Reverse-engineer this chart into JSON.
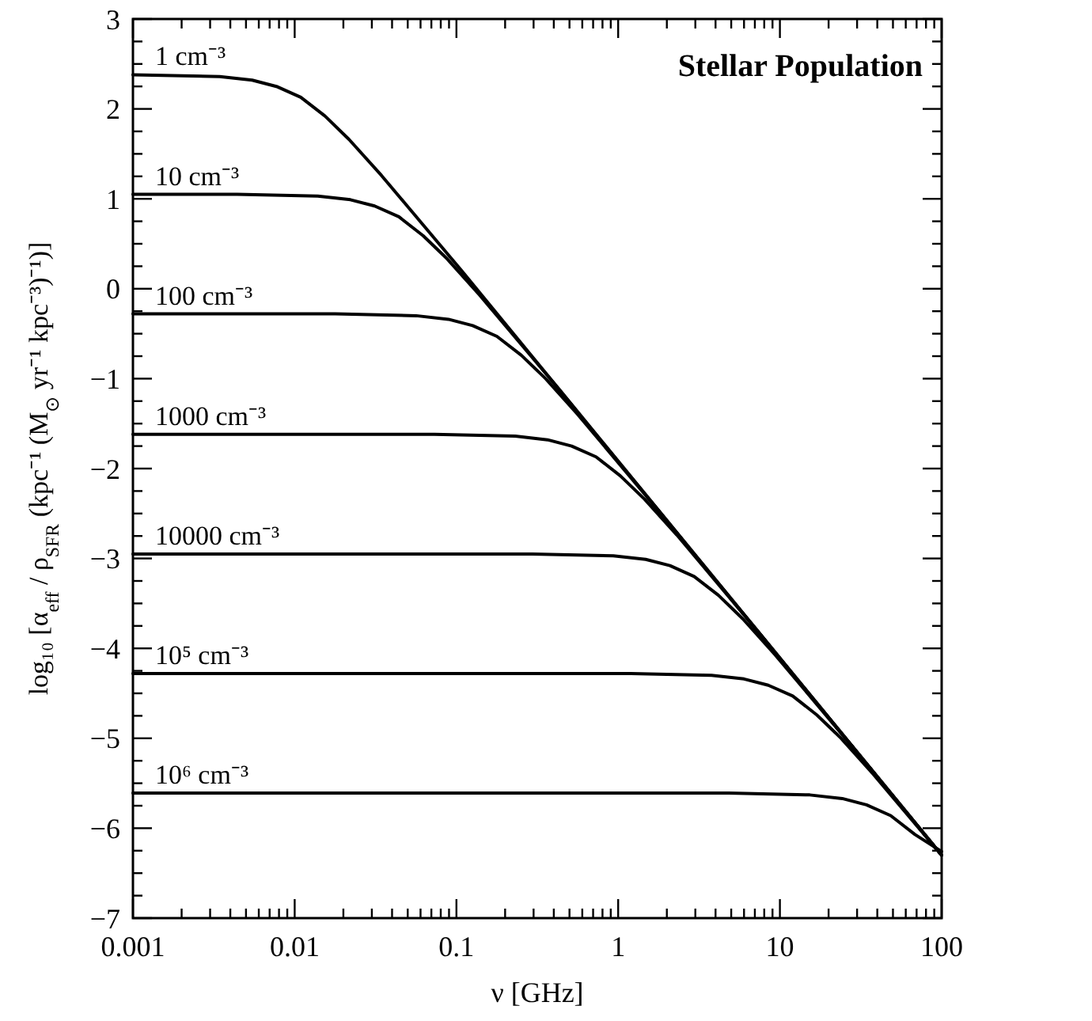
{
  "chart_data": {
    "type": "line",
    "title": "Stellar Population",
    "xlabel": "ν [GHz]",
    "ylabel": "log₁₀ [α$_{eff}$ / ρ$_{SFR}$ (kpc⁻¹ (M$_{⊙}$ yr⁻¹ kpc⁻³)⁻¹)]",
    "log": "x",
    "grid": false,
    "marker": "none",
    "line_style": "solid",
    "xlim": [
      0.001,
      100
    ],
    "ylim": [
      -7,
      3
    ],
    "xticks": [
      0.001,
      {
        "value": 0.002,
        "label": null
      },
      {
        "value": 0.003,
        "label": null
      },
      {
        "value": 0.004,
        "label": null
      },
      {
        "value": 0.005,
        "label": null
      },
      {
        "value": 0.006,
        "label": null
      },
      {
        "value": 0.007,
        "label": null
      },
      {
        "value": 0.008,
        "label": null
      },
      {
        "value": 0.009,
        "label": null
      },
      0.01,
      {
        "value": 0.02,
        "label": null
      },
      {
        "value": 0.03,
        "label": null
      },
      {
        "value": 0.04,
        "label": null
      },
      {
        "value": 0.05,
        "label": null
      },
      {
        "value": 0.06,
        "label": null
      },
      {
        "value": 0.07,
        "label": null
      },
      {
        "value": 0.08,
        "label": null
      },
      {
        "value": 0.09,
        "label": null
      },
      0.1,
      {
        "value": 0.2,
        "label": null
      },
      {
        "value": 0.3,
        "label": null
      },
      {
        "value": 0.4,
        "label": null
      },
      {
        "value": 0.5,
        "label": null
      },
      {
        "value": 0.6,
        "label": null
      },
      {
        "value": 0.7,
        "label": null
      },
      {
        "value": 0.8,
        "label": null
      },
      {
        "value": 0.9,
        "label": null
      },
      1,
      {
        "value": 2,
        "label": null
      },
      {
        "value": 3,
        "label": null
      },
      {
        "value": 4,
        "label": null
      },
      {
        "value": 5,
        "label": null
      },
      {
        "value": 6,
        "label": null
      },
      {
        "value": 7,
        "label": null
      },
      {
        "value": 8,
        "label": null
      },
      {
        "value": 9,
        "label": null
      },
      10,
      {
        "value": 20,
        "label": null
      },
      {
        "value": 30,
        "label": null
      },
      {
        "value": 40,
        "label": null
      },
      {
        "value": 50,
        "label": null
      },
      {
        "value": 60,
        "label": null
      },
      {
        "value": 70,
        "label": null
      },
      {
        "value": 80,
        "label": null
      },
      {
        "value": 90,
        "label": null
      },
      100
    ],
    "yticks": [
      {
        "value": -7,
        "label": "−7"
      },
      {
        "value": -6.75,
        "label": null
      },
      {
        "value": -6.5,
        "label": null
      },
      {
        "value": -6.25,
        "label": null
      },
      {
        "value": -6,
        "label": "−6"
      },
      {
        "value": -5.75,
        "label": null
      },
      {
        "value": -5.5,
        "label": null
      },
      {
        "value": -5.25,
        "label": null
      },
      {
        "value": -5,
        "label": "−5"
      },
      {
        "value": -4.75,
        "label": null
      },
      {
        "value": -4.5,
        "label": null
      },
      {
        "value": -4.25,
        "label": null
      },
      {
        "value": -4,
        "label": "−4"
      },
      {
        "value": -3.75,
        "label": null
      },
      {
        "value": -3.5,
        "label": null
      },
      {
        "value": -3.25,
        "label": null
      },
      {
        "value": -3,
        "label": "−3"
      },
      {
        "value": -2.75,
        "label": null
      },
      {
        "value": -2.5,
        "label": null
      },
      {
        "value": -2.25,
        "label": null
      },
      {
        "value": -2,
        "label": "−2"
      },
      {
        "value": -1.75,
        "label": null
      },
      {
        "value": -1.5,
        "label": null
      },
      {
        "value": -1.25,
        "label": null
      },
      {
        "value": -1,
        "label": "−1"
      },
      {
        "value": -0.75,
        "label": null
      },
      {
        "value": -0.5,
        "label": null
      },
      {
        "value": -0.25,
        "label": null
      },
      0,
      {
        "value": 0.25,
        "label": null
      },
      {
        "value": 0.5,
        "label": null
      },
      {
        "value": 0.75,
        "label": null
      },
      1,
      {
        "value": 1.25,
        "label": null
      },
      {
        "value": 1.5,
        "label": null
      },
      {
        "value": 1.75,
        "label": null
      },
      2,
      {
        "value": 2.25,
        "label": null
      },
      {
        "value": 2.5,
        "label": null
      },
      {
        "value": 2.75,
        "label": null
      },
      3
    ],
    "series": [
      {
        "name": "1 cm⁻³",
        "color": "#000000",
        "x": [
          0.001,
          0.00344,
          0.00546,
          0.00771,
          0.0109,
          0.0154,
          0.0217,
          0.0344,
          0.109,
          100
        ],
        "values": [
          2.38,
          2.36,
          2.32,
          2.25,
          2.13,
          1.92,
          1.66,
          1.26,
          0.19,
          -6.3
        ]
      },
      {
        "name": "10 cm⁻³",
        "color": "#000000",
        "x": [
          0.001,
          0.00441,
          0.0139,
          0.0221,
          0.0312,
          0.0441,
          0.0622,
          0.0879,
          0.139,
          0.441,
          100
        ],
        "values": [
          1.05,
          1.05,
          1.03,
          0.99,
          0.92,
          0.8,
          0.59,
          0.33,
          -0.07,
          -1.14,
          -6.3
        ]
      },
      {
        "name": "100 cm⁻³",
        "color": "#000000",
        "x": [
          0.001,
          0.0178,
          0.0564,
          0.0893,
          0.126,
          0.178,
          0.252,
          0.356,
          0.564,
          1.78,
          100
        ],
        "values": [
          -0.28,
          -0.28,
          -0.3,
          -0.34,
          -0.41,
          -0.53,
          -0.74,
          -1.0,
          -1.4,
          -2.47,
          -6.3
        ]
      },
      {
        "name": "1000 cm⁻³",
        "color": "#000000",
        "x": [
          0.001,
          0.073,
          0.231,
          0.366,
          0.516,
          0.73,
          1.03,
          1.455,
          2.31,
          7.3,
          100
        ],
        "values": [
          -1.62,
          -1.62,
          -1.64,
          -1.68,
          -1.75,
          -1.87,
          -2.08,
          -2.34,
          -2.74,
          -3.81,
          -6.3
        ]
      },
      {
        "name": "10000 cm⁻³",
        "color": "#000000",
        "x": [
          0.001,
          0.295,
          0.933,
          1.48,
          2.09,
          2.95,
          4.17,
          5.89,
          9.33,
          29.5,
          100
        ],
        "values": [
          -2.95,
          -2.95,
          -2.97,
          -3.01,
          -3.08,
          -3.2,
          -3.41,
          -3.67,
          -4.07,
          -5.14,
          -6.3
        ]
      },
      {
        "name": "10⁵ cm⁻³",
        "color": "#000000",
        "x": [
          0.001,
          1.2,
          3.78,
          6.0,
          8.47,
          12,
          16.9,
          23.9,
          37.8,
          100
        ],
        "values": [
          -4.28,
          -4.28,
          -4.3,
          -4.34,
          -4.41,
          -4.53,
          -4.74,
          -5.0,
          -5.4,
          -6.3
        ]
      },
      {
        "name": "10⁶ cm⁻³",
        "color": "#000000",
        "x": [
          0.001,
          4.84,
          15.3,
          24.3,
          34.3,
          48.4,
          68.4,
          100
        ],
        "values": [
          -5.61,
          -5.61,
          -5.63,
          -5.67,
          -5.74,
          -5.86,
          -6.07,
          -6.26
        ]
      }
    ]
  }
}
